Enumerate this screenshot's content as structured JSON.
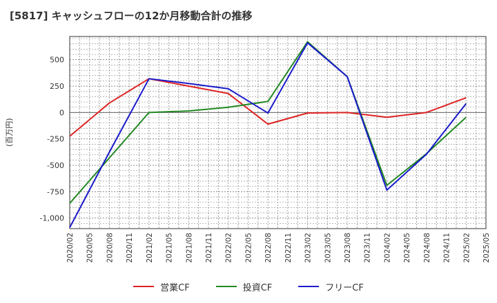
{
  "chart_data": {
    "type": "line",
    "title": "[5817]  キャッシュフローの12か月移動合計の推移",
    "xlabel": "",
    "ylabel": "(百万円)",
    "ylim": [
      -1100,
      720
    ],
    "yticks": [
      500,
      250,
      0,
      -250,
      -500,
      -750,
      -1000
    ],
    "ytick_labels": [
      "500",
      "250",
      "0",
      "-250",
      "-500",
      "-750",
      "-1,000"
    ],
    "x_categories": [
      "2020/02",
      "2020/05",
      "2020/08",
      "2020/11",
      "2021/02",
      "2021/05",
      "2021/08",
      "2021/11",
      "2022/02",
      "2022/05",
      "2022/08",
      "2022/11",
      "2023/02",
      "2023/05",
      "2023/08",
      "2023/11",
      "2024/02",
      "2024/05",
      "2024/08",
      "2024/11",
      "2025/02",
      "2025/05"
    ],
    "grid": true,
    "legend_position": "bottom",
    "series": [
      {
        "name": "営業CF",
        "color": "#dd2222",
        "x_index": [
          0,
          2,
          4,
          8,
          10,
          12,
          14,
          16,
          18,
          20
        ],
        "values": [
          -225,
          90,
          320,
          180,
          -110,
          -5,
          0,
          -45,
          0,
          140
        ]
      },
      {
        "name": "投資CF",
        "color": "#228822",
        "x_index": [
          0,
          4,
          6,
          8,
          10,
          12,
          14,
          16,
          18,
          20
        ],
        "values": [
          -860,
          0,
          15,
          50,
          105,
          670,
          340,
          -690,
          -390,
          -45
        ]
      },
      {
        "name": "フリーCF",
        "color": "#1a1acc",
        "x_index": [
          0,
          2,
          4,
          6,
          8,
          10,
          12,
          14,
          16,
          18,
          20
        ],
        "values": [
          -1090,
          -375,
          320,
          275,
          225,
          -5,
          660,
          340,
          -735,
          -395,
          85
        ]
      }
    ]
  }
}
